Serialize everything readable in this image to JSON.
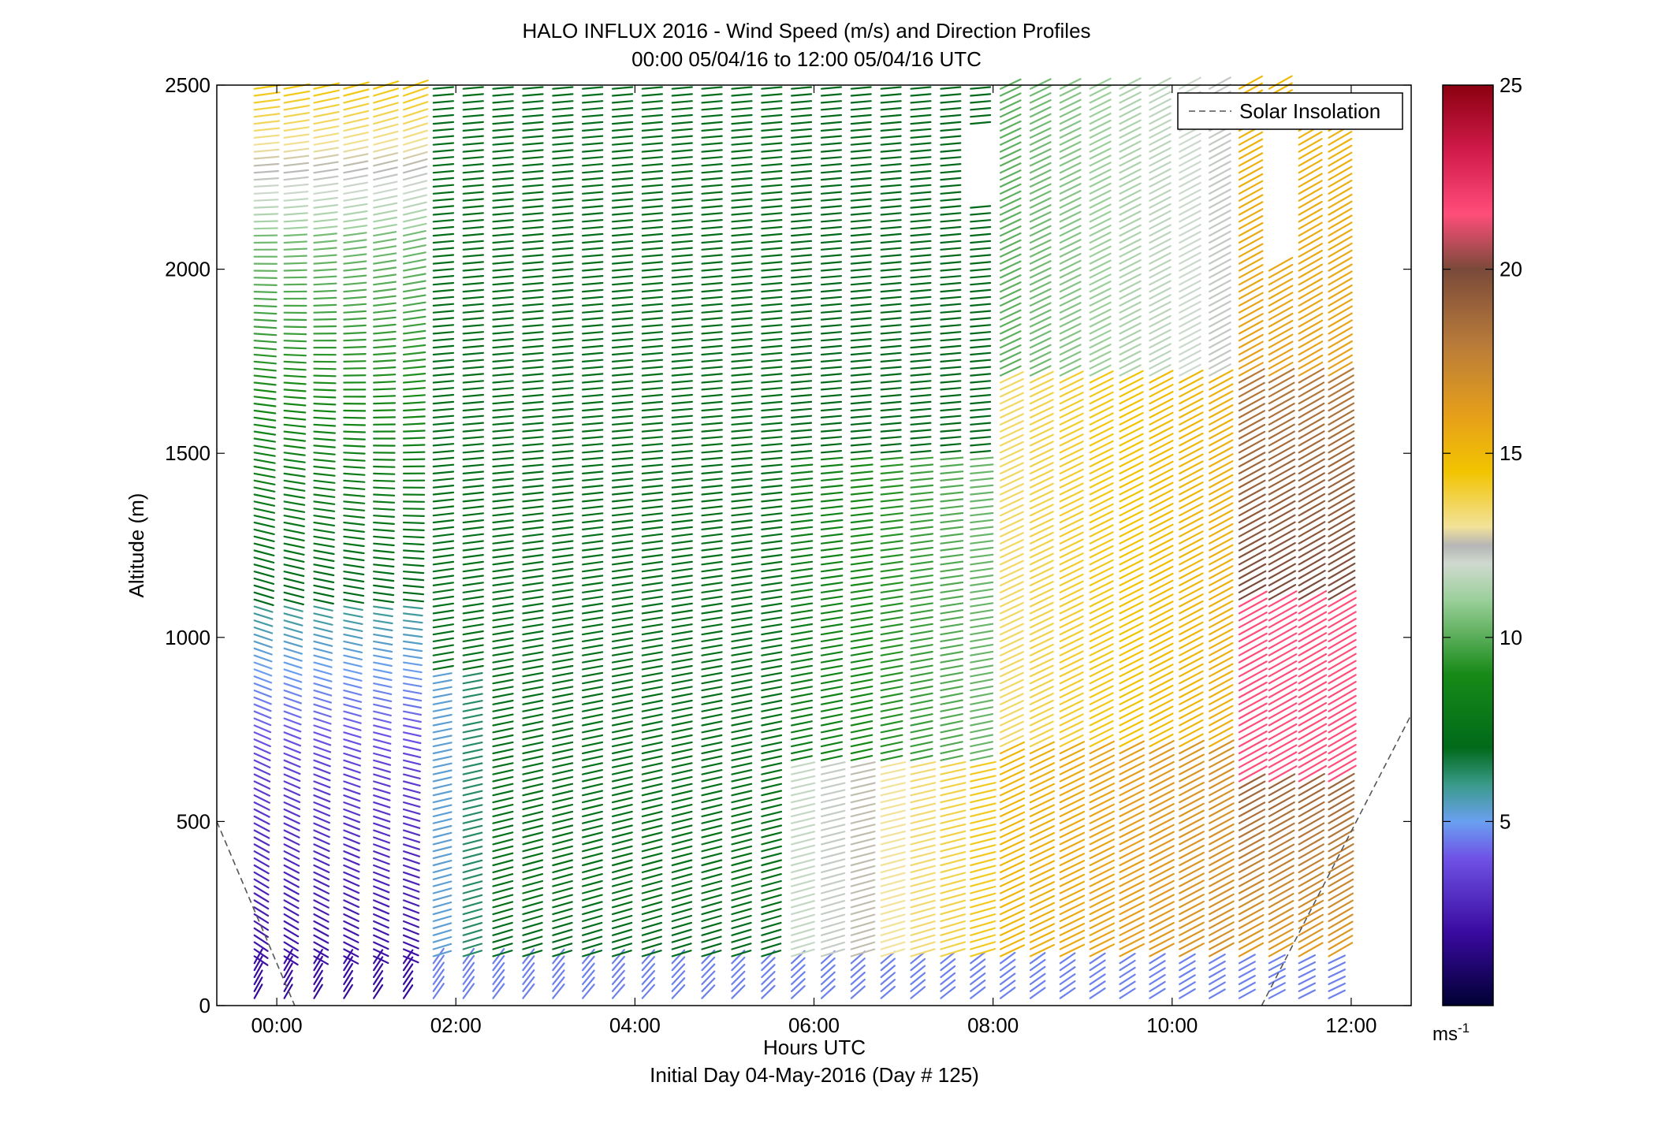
{
  "chart_data": {
    "type": "quiver-profile",
    "title": "HALO INFLUX 2016 - Wind Speed (m/s) and Direction Profiles",
    "subtitle": "00:00 05/04/16 to 12:00 05/04/16  UTC",
    "xlabel": "Hours UTC",
    "xlabel2": "Initial Day 04-May-2016 (Day # 125)",
    "ylabel": "Altitude (m)",
    "xlim": [
      -0.67,
      12.67
    ],
    "ylim": [
      0,
      2500
    ],
    "x_ticks": [
      {
        "value": 0,
        "label": "00:00"
      },
      {
        "value": 2,
        "label": "02:00"
      },
      {
        "value": 4,
        "label": "04:00"
      },
      {
        "value": 6,
        "label": "06:00"
      },
      {
        "value": 8,
        "label": "08:00"
      },
      {
        "value": 10,
        "label": "10:00"
      },
      {
        "value": 12,
        "label": "12:00"
      }
    ],
    "y_ticks": [
      {
        "value": 0,
        "label": "0"
      },
      {
        "value": 500,
        "label": "500"
      },
      {
        "value": 1000,
        "label": "1000"
      },
      {
        "value": 1500,
        "label": "1500"
      },
      {
        "value": 2000,
        "label": "2000"
      },
      {
        "value": 2500,
        "label": "2500"
      }
    ],
    "legend": {
      "label": "Solar Insolation",
      "placement": "top-right",
      "line_color": "#555555"
    },
    "colorbar": {
      "range": [
        0,
        25
      ],
      "ticks": [
        {
          "value": 5,
          "label": "5"
        },
        {
          "value": 10,
          "label": "10"
        },
        {
          "value": 15,
          "label": "15"
        },
        {
          "value": 20,
          "label": "20"
        },
        {
          "value": 25,
          "label": "25"
        }
      ],
      "unit_label": "ms",
      "unit_exponent": "-1"
    },
    "solar_insolation": {
      "segments": [
        [
          [
            -0.67,
            500
          ],
          [
            0.2,
            0
          ]
        ],
        [
          [
            11.0,
            0
          ],
          [
            12.67,
            790
          ]
        ]
      ]
    },
    "profiles_time_range_hours": [
      -0.25,
      11.75
    ],
    "profile_count": 37,
    "altitude_step_m": 19,
    "wind_field_key": {
      "speed_ms": [
        {
          "time_h": 0.0,
          "alt_m": 50,
          "value": 2.5
        },
        {
          "time_h": 0.0,
          "alt_m": 500,
          "value": 2.0
        },
        {
          "time_h": 0.0,
          "alt_m": 900,
          "value": 4.0
        },
        {
          "time_h": 0.0,
          "alt_m": 1500,
          "value": 8.5
        },
        {
          "time_h": 0.0,
          "alt_m": 2400,
          "value": 14.5
        },
        {
          "time_h": 2.0,
          "alt_m": 700,
          "value": 7.5
        },
        {
          "time_h": 4.0,
          "alt_m": 1300,
          "value": 7.0
        },
        {
          "time_h": 6.5,
          "alt_m": 450,
          "value": 14.0
        },
        {
          "time_h": 8.5,
          "alt_m": 450,
          "value": 16.0
        },
        {
          "time_h": 9.5,
          "alt_m": 1200,
          "value": 14.5
        },
        {
          "time_h": 11.0,
          "alt_m": 900,
          "value": 21.5
        },
        {
          "time_h": 11.5,
          "alt_m": 2000,
          "value": 15.0
        }
      ],
      "direction": "mostly westerly to west-southwesterly; near-surface flow from the south"
    },
    "data_gaps": [
      {
        "time_h": [
          7.6,
          7.9
        ],
        "alt_m": [
          2170,
          2380
        ]
      },
      {
        "time_h": [
          10.8,
          11.1
        ],
        "alt_m": [
          2000,
          2380
        ]
      },
      {
        "time_h": [
          11.4,
          11.8
        ],
        "alt_m": [
          2430,
          2500
        ]
      }
    ]
  }
}
